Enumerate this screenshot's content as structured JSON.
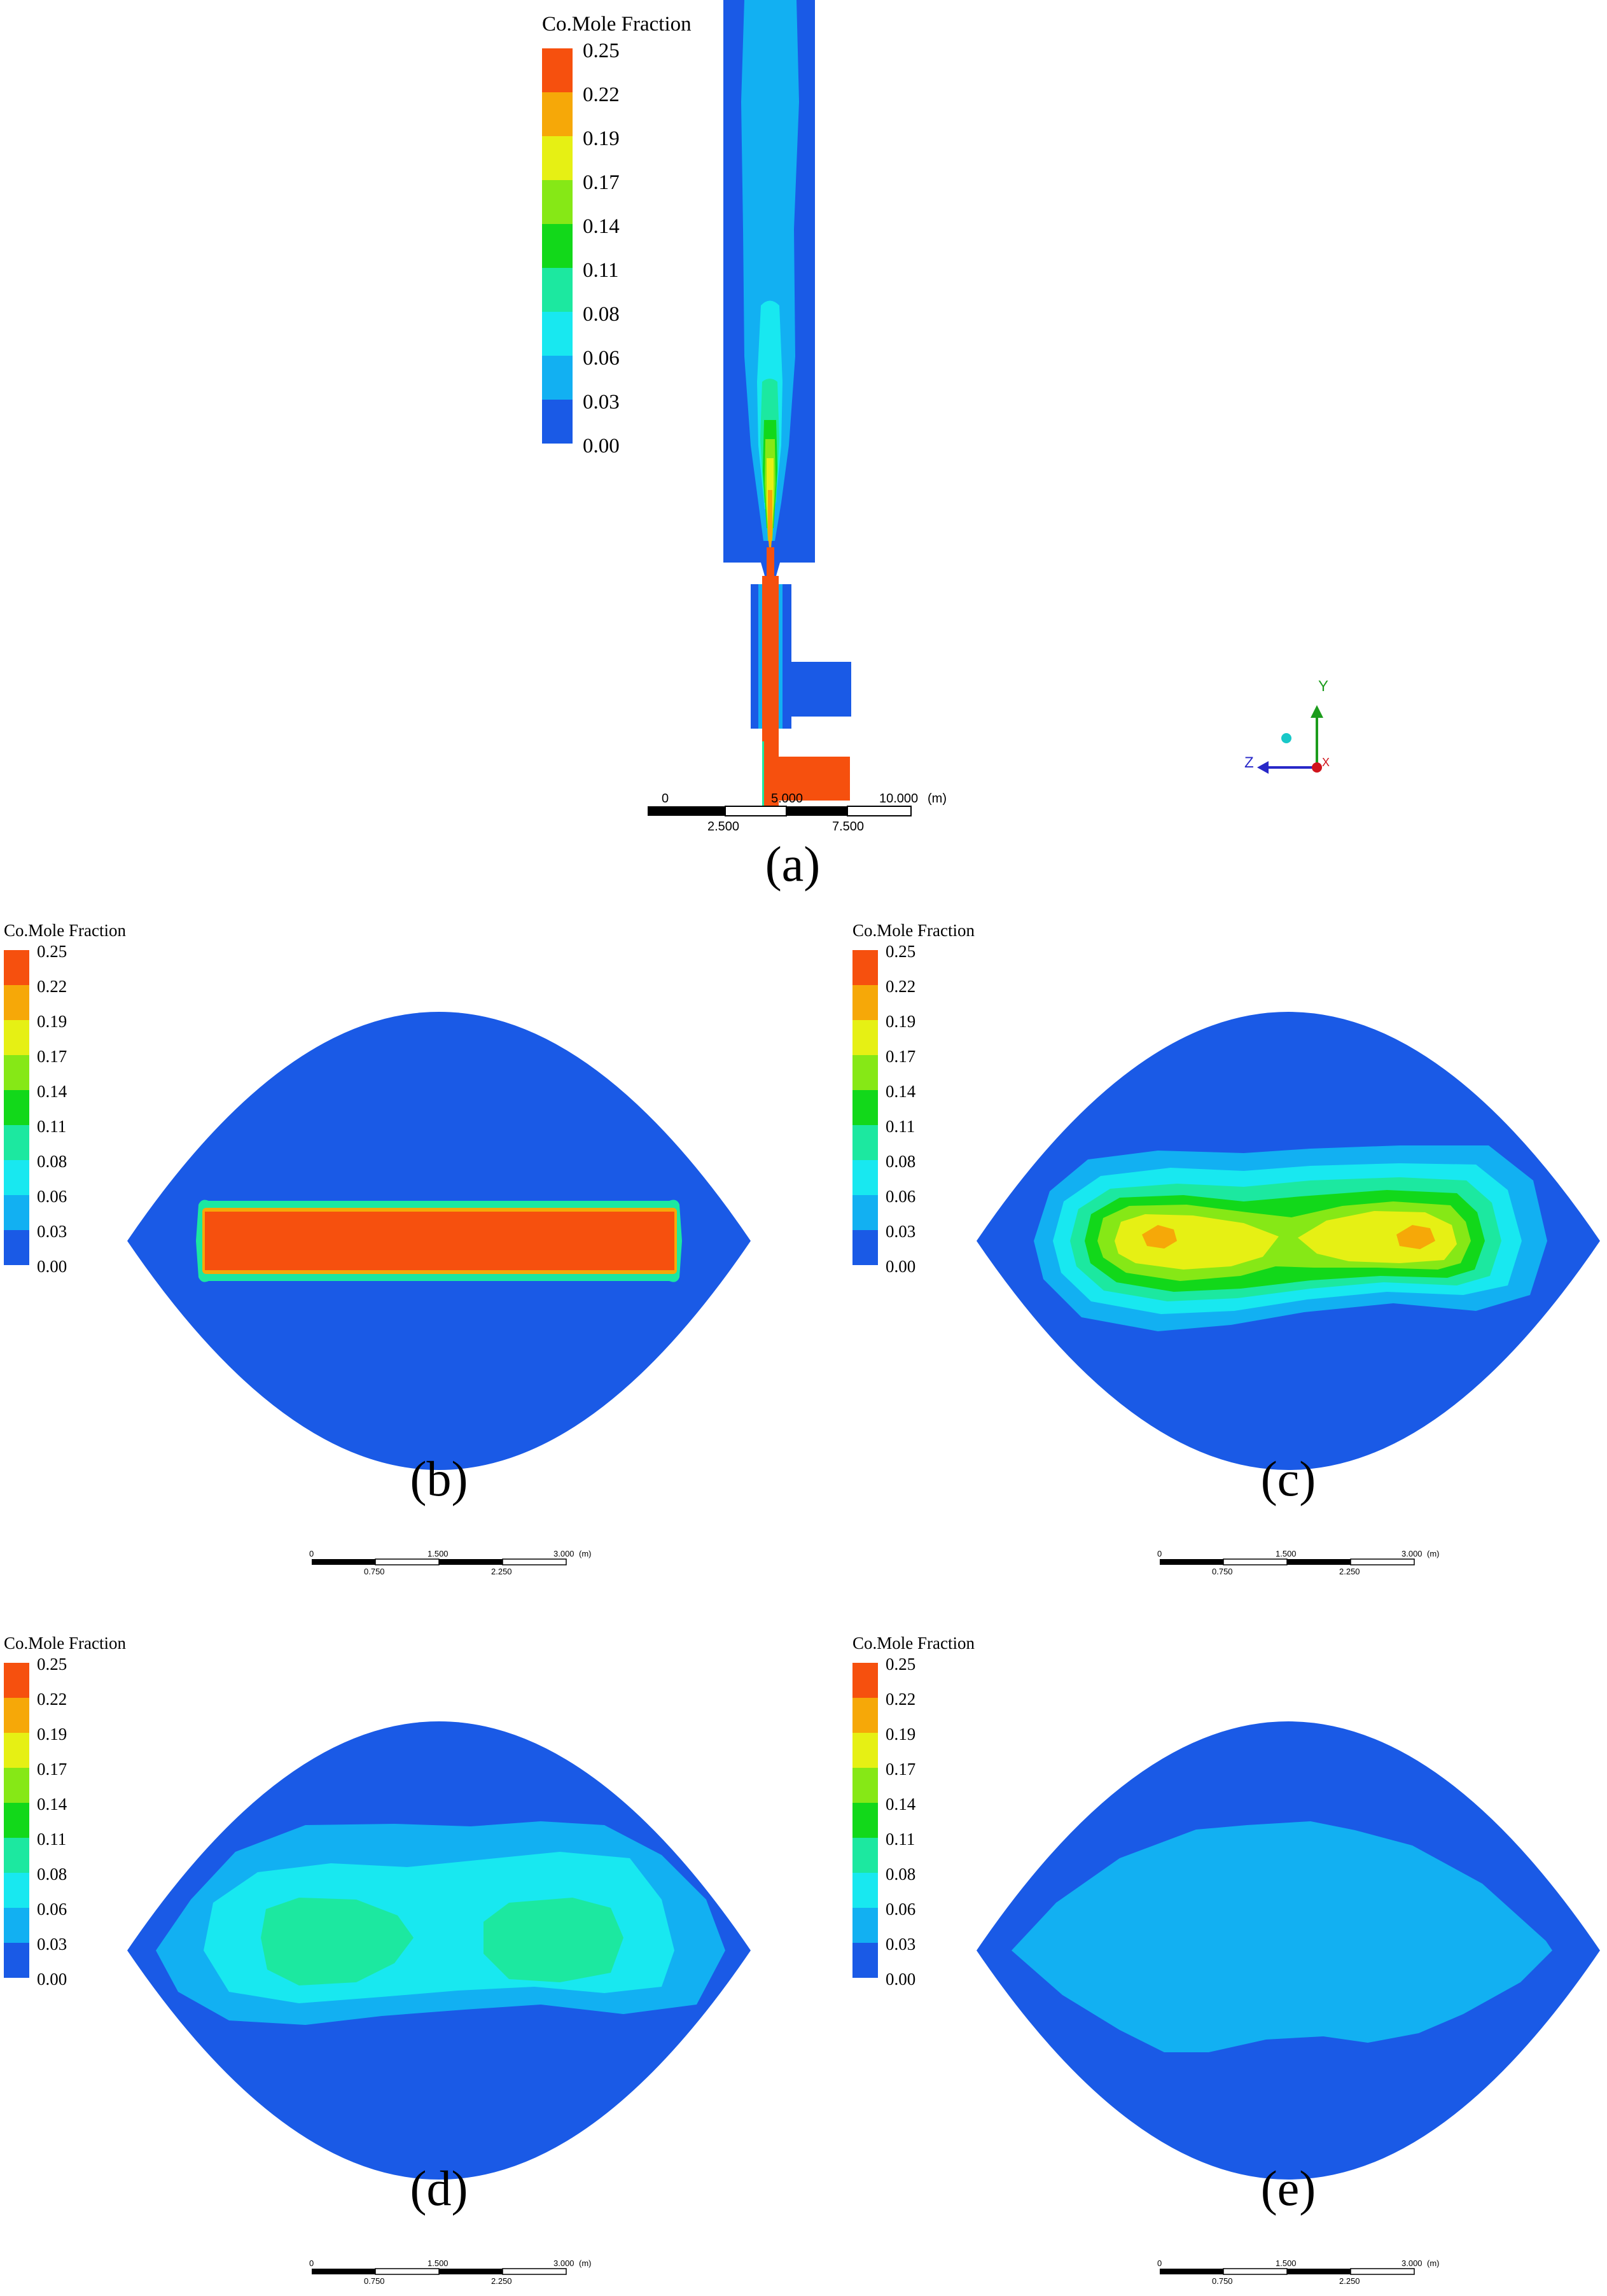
{
  "colors": {
    "c0": "#1a5ae6",
    "c1": "#12b0f2",
    "c2": "#18e8f0",
    "c3": "#1ce8a0",
    "c4": "#12d81a",
    "c5": "#86e816",
    "c6": "#e6f014",
    "c7": "#f6a808",
    "c8": "#f6500e",
    "axis_x": "#d0141c",
    "axis_y": "#1c9c1c",
    "axis_z": "#2828c8",
    "origin": "#18c8c8"
  },
  "legend": {
    "title": "Co.Mole Fraction",
    "ticks": [
      "0.25",
      "0.22",
      "0.19",
      "0.17",
      "0.14",
      "0.11",
      "0.08",
      "0.06",
      "0.03",
      "0.00"
    ]
  },
  "panels": {
    "a": {
      "label": "(a)",
      "scale_top": [
        "0",
        "5.000",
        "10.000",
        "(m)"
      ],
      "scale_bottom": [
        "2.500",
        "7.500"
      ]
    },
    "b": {
      "label": "(b)"
    },
    "c": {
      "label": "(c)"
    },
    "d": {
      "label": "(d)"
    },
    "e": {
      "label": "(e)"
    }
  },
  "small_scale": {
    "top": [
      "0",
      "1.500",
      "3.000",
      "(m)"
    ],
    "bottom": [
      "0.750",
      "2.250"
    ]
  },
  "triad": {
    "y": "Y",
    "z": "Z",
    "x": "X"
  }
}
